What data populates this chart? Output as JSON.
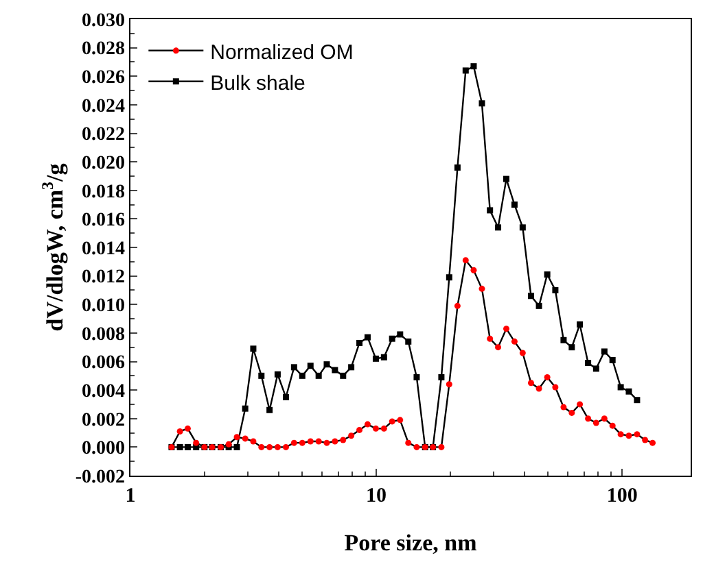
{
  "chart_data": {
    "type": "line",
    "xlabel": "Pore size, nm",
    "ylabel": "dV/dlogW, cm$^{3}$/g",
    "log": "x",
    "xlim": [
      1,
      190
    ],
    "xticks": [
      1,
      10,
      100
    ],
    "ylim": [
      -0.002,
      0.03
    ],
    "yticks": [
      {
        "value": -0.002,
        "label": "-0.002"
      },
      {
        "value": 0,
        "label": "0.000"
      },
      {
        "value": 0.002,
        "label": "0.002"
      },
      {
        "value": 0.004,
        "label": "0.004"
      },
      {
        "value": 0.006,
        "label": "0.006"
      },
      {
        "value": 0.008,
        "label": "0.008"
      },
      {
        "value": 0.01,
        "label": "0.010"
      },
      {
        "value": 0.012,
        "label": "0.012"
      },
      {
        "value": 0.014,
        "label": "0.014"
      },
      {
        "value": 0.016,
        "label": "0.016"
      },
      {
        "value": 0.018,
        "label": "0.018"
      },
      {
        "value": 0.02,
        "label": "0.020"
      },
      {
        "value": 0.022,
        "label": "0.022"
      },
      {
        "value": 0.024,
        "label": "0.024"
      },
      {
        "value": 0.026,
        "label": "0.026"
      },
      {
        "value": 0.028,
        "label": "0.028"
      },
      {
        "value": 0.03,
        "label": "0.030"
      }
    ],
    "legend": "top left",
    "line_style": "solid",
    "series": [
      {
        "name": "Normalized OM",
        "color": "#ff0000",
        "marker": "circle",
        "x": [
          1.47,
          1.59,
          1.71,
          1.85,
          2.0,
          2.15,
          2.33,
          2.51,
          2.71,
          2.93,
          3.16,
          3.41,
          3.68,
          3.97,
          4.29,
          4.63,
          5.0,
          5.4,
          5.83,
          6.29,
          6.79,
          7.33,
          7.91,
          8.54,
          9.22,
          9.96,
          10.75,
          11.6,
          12.5,
          13.5,
          14.6,
          15.8,
          17.0,
          18.4,
          19.8,
          21.4,
          23.1,
          24.9,
          26.9,
          29.0,
          31.3,
          33.8,
          36.5,
          39.4,
          42.6,
          45.9,
          49.6,
          53.5,
          57.8,
          62.4,
          67.3,
          72.7,
          78.4,
          84.7,
          91.4,
          98.7,
          106.5,
          115,
          124,
          133
        ],
        "values": [
          0,
          0.0011,
          0.0013,
          0.0003,
          0,
          0,
          0,
          0.0002,
          0.0007,
          0.0006,
          0.0004,
          0,
          0,
          0,
          0,
          0.0003,
          0.0003,
          0.0004,
          0.0004,
          0.0003,
          0.0004,
          0.0005,
          0.0008,
          0.0012,
          0.0016,
          0.0013,
          0.0013,
          0.0018,
          0.0019,
          0.0003,
          0,
          0,
          0,
          0,
          0.0044,
          0.0099,
          0.0131,
          0.0124,
          0.0111,
          0.0076,
          0.007,
          0.0083,
          0.0074,
          0.0066,
          0.0045,
          0.0041,
          0.0049,
          0.0042,
          0.0028,
          0.0024,
          0.003,
          0.002,
          0.0017,
          0.002,
          0.0015,
          0.0009,
          0.0008,
          0.0009,
          0.0005,
          0.0003
        ]
      },
      {
        "name": "Bulk shale",
        "color": "#000000",
        "marker": "square",
        "x": [
          1.47,
          1.59,
          1.71,
          1.85,
          2.0,
          2.15,
          2.33,
          2.51,
          2.71,
          2.93,
          3.16,
          3.41,
          3.68,
          3.97,
          4.29,
          4.63,
          5.0,
          5.4,
          5.83,
          6.29,
          6.79,
          7.33,
          7.91,
          8.54,
          9.22,
          9.96,
          10.75,
          11.6,
          12.5,
          13.5,
          14.6,
          15.8,
          17.0,
          18.4,
          19.8,
          21.4,
          23.1,
          24.9,
          26.9,
          29.0,
          31.3,
          33.8,
          36.5,
          39.4,
          42.6,
          45.9,
          49.6,
          53.5,
          57.8,
          62.4,
          67.3,
          72.7,
          78.4,
          84.7,
          91.4,
          98.7,
          106.5,
          115
        ],
        "values": [
          0,
          0,
          0,
          0,
          0,
          0,
          0,
          0,
          0,
          0.0027,
          0.0069,
          0.005,
          0.0026,
          0.0051,
          0.0035,
          0.0056,
          0.005,
          0.0057,
          0.005,
          0.0058,
          0.0054,
          0.005,
          0.0056,
          0.0073,
          0.0077,
          0.0062,
          0.0063,
          0.0076,
          0.0079,
          0.0074,
          0.0049,
          0,
          0,
          0.0049,
          0.0119,
          0.0196,
          0.0264,
          0.0267,
          0.0241,
          0.0166,
          0.0154,
          0.0188,
          0.017,
          0.0154,
          0.0106,
          0.0099,
          0.0121,
          0.011,
          0.0075,
          0.007,
          0.0086,
          0.0059,
          0.0055,
          0.0067,
          0.0061,
          0.0042,
          0.0039,
          0.0033
        ]
      }
    ]
  }
}
